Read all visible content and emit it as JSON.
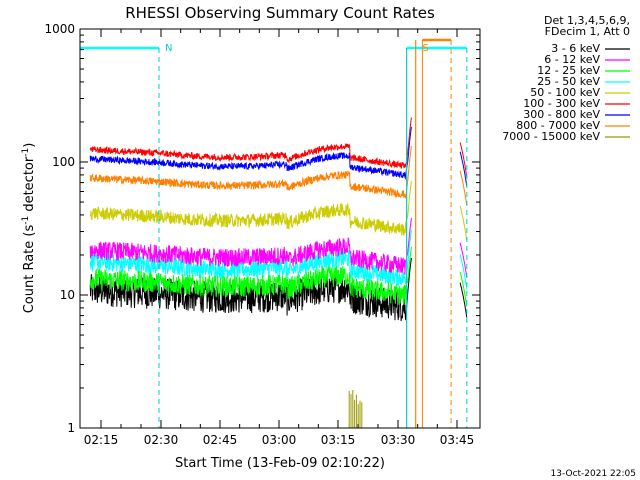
{
  "chart_data": {
    "type": "line",
    "title": "RHESSI Observing Summary Count Rates",
    "xlabel": "Start Time (13-Feb-09 02:10:22)",
    "ylabel_main": "Count Rate (s",
    "ylabel_sup1": "-1",
    "ylabel_mid": " detector",
    "ylabel_sup2": "-1",
    "ylabel_end": ")",
    "yscale": "log",
    "ylim": [
      1,
      1000
    ],
    "xlim_minutes": [
      10.37,
      48.9
    ],
    "x_ticks": [
      {
        "minute": 15,
        "label": "02:15"
      },
      {
        "minute": 30,
        "label": "02:30"
      },
      {
        "minute": 45,
        "label": "02:45"
      },
      {
        "minute": 60,
        "label": "03:00"
      },
      {
        "minute": 75,
        "label": "03:15"
      },
      {
        "minute": 90,
        "label": "03:30"
      },
      {
        "minute": 105,
        "label": "03:45"
      }
    ],
    "y_ticks": [
      {
        "value": 1,
        "label": "1"
      },
      {
        "value": 10,
        "label": "10"
      },
      {
        "value": 100,
        "label": "100"
      },
      {
        "value": 1000,
        "label": "1000"
      }
    ],
    "legend_header": [
      "Det 1,3,4,5,6,9,",
      "FDecim 1, Att 0"
    ],
    "series": [
      {
        "name": "3 - 6 keV",
        "color": "#000000",
        "base": 9.5,
        "noise": 0.12
      },
      {
        "name": "6 - 12 keV",
        "color": "#ff00ff",
        "base": 19,
        "noise": 0.07
      },
      {
        "name": "12 - 25 keV",
        "color": "#00ff00",
        "base": 11.5,
        "noise": 0.08
      },
      {
        "name": "25 - 50 keV",
        "color": "#00ffff",
        "base": 15.5,
        "noise": 0.07
      },
      {
        "name": "50 - 100 keV",
        "color": "#cccc00",
        "base": 36,
        "noise": 0.05
      },
      {
        "name": "100 - 300 keV",
        "color": "#ff0000",
        "base": 108,
        "noise": 0.025
      },
      {
        "name": "300 - 800 keV",
        "color": "#0000ff",
        "base": 92,
        "noise": 0.025
      },
      {
        "name": "800 - 7000 keV",
        "color": "#ff8000",
        "base": 66,
        "noise": 0.03
      },
      {
        "name": "7000 - 15000 keV",
        "color": "#999900",
        "base": 0,
        "noise": 0
      }
    ],
    "annotations": [
      {
        "label": "N",
        "minute": 29.5,
        "color": "#00cccc"
      },
      {
        "label": "S",
        "minute": 94.7,
        "color": "#ff8000"
      }
    ],
    "footer_date": "13-Oct-2021 22:05"
  }
}
